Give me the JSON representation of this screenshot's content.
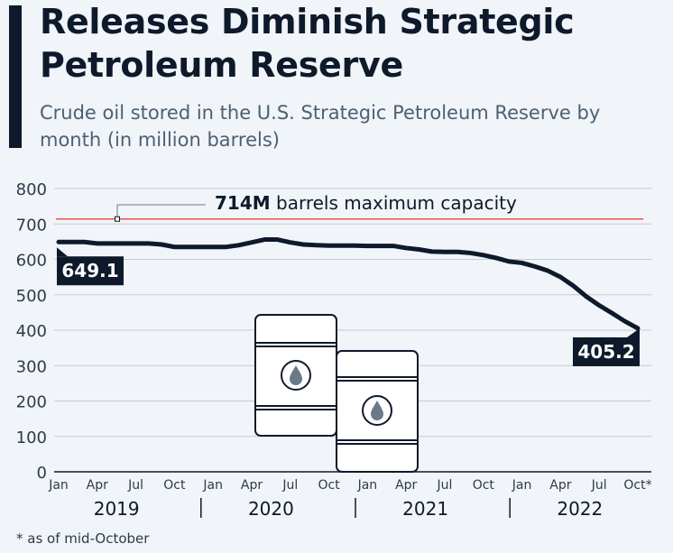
{
  "title": "Releases Diminish Strategic Petroleum Reserve",
  "subtitle": "Crude oil stored in the U.S. Strategic Petroleum Reserve by month (in million barrels)",
  "footnote": "* as of mid-October",
  "colors": {
    "line": "#0e1a2b",
    "capacity_line": "#e8534f",
    "grid": "#c4ccd6",
    "label_bg": "#0e1a2b",
    "label_text": "#ffffff"
  },
  "chart_data": {
    "type": "line",
    "ylim": [
      0,
      800
    ],
    "yticks": [
      0,
      100,
      200,
      300,
      400,
      500,
      600,
      700,
      800
    ],
    "grid": true,
    "x_tick_labels": [
      "Jan",
      "Apr",
      "Jul",
      "Oct",
      "Jan",
      "Apr",
      "Jul",
      "Oct",
      "Jan",
      "Apr",
      "Jul",
      "Oct",
      "Jan",
      "Apr",
      "Jul",
      "Oct*"
    ],
    "years": [
      "2019",
      "2020",
      "2021",
      "2022"
    ],
    "reference_line": {
      "value": 714,
      "bold": "714M",
      "text": "barrels maximum capacity"
    },
    "annotations": [
      {
        "label": "649.1",
        "x": "2019-01",
        "y": 649.1
      },
      {
        "label": "405.2",
        "x": "2022-10",
        "y": 405.2
      }
    ],
    "series": [
      {
        "x": [
          "2019-01",
          "2019-02",
          "2019-03",
          "2019-04",
          "2019-05",
          "2019-06",
          "2019-07",
          "2019-08",
          "2019-09",
          "2019-10",
          "2019-11",
          "2019-12",
          "2020-01",
          "2020-02",
          "2020-03",
          "2020-04",
          "2020-05",
          "2020-06",
          "2020-07",
          "2020-08",
          "2020-09",
          "2020-10",
          "2020-11",
          "2020-12",
          "2021-01",
          "2021-02",
          "2021-03",
          "2021-04",
          "2021-05",
          "2021-06",
          "2021-07",
          "2021-08",
          "2021-09",
          "2021-10",
          "2021-11",
          "2021-12",
          "2022-01",
          "2022-02",
          "2022-03",
          "2022-04",
          "2022-05",
          "2022-06",
          "2022-07",
          "2022-08",
          "2022-09",
          "2022-10"
        ],
        "values": [
          649.1,
          649,
          649,
          645,
          645,
          645,
          645,
          645,
          642,
          635,
          635,
          635,
          635,
          635,
          640,
          648,
          656,
          656,
          648,
          642,
          640,
          639,
          639,
          639,
          638,
          638,
          638,
          632,
          628,
          622,
          621,
          621,
          618,
          612,
          604,
          594,
          590,
          580,
          568,
          550,
          525,
          495,
          470,
          448,
          425,
          405.2
        ]
      }
    ]
  }
}
